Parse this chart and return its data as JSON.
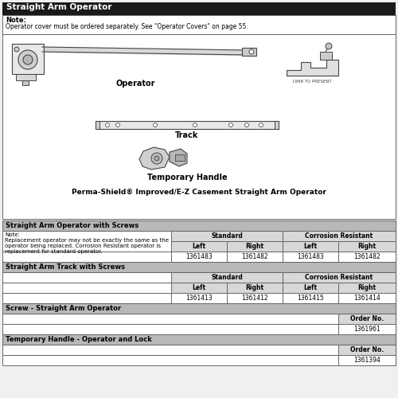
{
  "title": "Straight Arm Operator",
  "note_label": "Note:",
  "note_text": "Operator cover must be ordered separately. See \"Operator Covers\" on page 55.",
  "diagram_caption": "Perma-Shield® Improved/E-Z Casement Straight Arm Operator",
  "operator_label": "Operator",
  "track_label": "Track",
  "handle_label": "Temporary Handle",
  "date_label": "1998 TO PRESENT",
  "table1_title": "Straight Arm Operator with Screws",
  "table1_note": "Note:\nReplacement operator may not be exactly the same as the\noperator being replaced. Corrosion Resistant operator is\nreplacement for standard operator.",
  "table2_title": "Straight Arm Track with Screws",
  "table3_title": "Screw - Straight Arm Operator",
  "table4_title": "Temporary Handle - Operator and Lock",
  "col_standard": "Standard",
  "col_corrosion": "Corrosion Resistant",
  "col_left": "Left",
  "col_right": "Right",
  "col_order": "Order No.",
  "table1_vals": [
    "1361483",
    "1361482",
    "1361483",
    "1361482"
  ],
  "table2_vals": [
    "1361413",
    "1361412",
    "1361415",
    "1361414"
  ],
  "table3_val": "1361961",
  "table4_val": "1361394",
  "header_bg": "#1a1a1a",
  "header_fg": "#ffffff",
  "section_bg": "#b8b8b8",
  "subheader_bg": "#d8d8d8",
  "border_color": "#666666",
  "bg_color": "#f0f0f0",
  "inner_bg": "#ffffff"
}
